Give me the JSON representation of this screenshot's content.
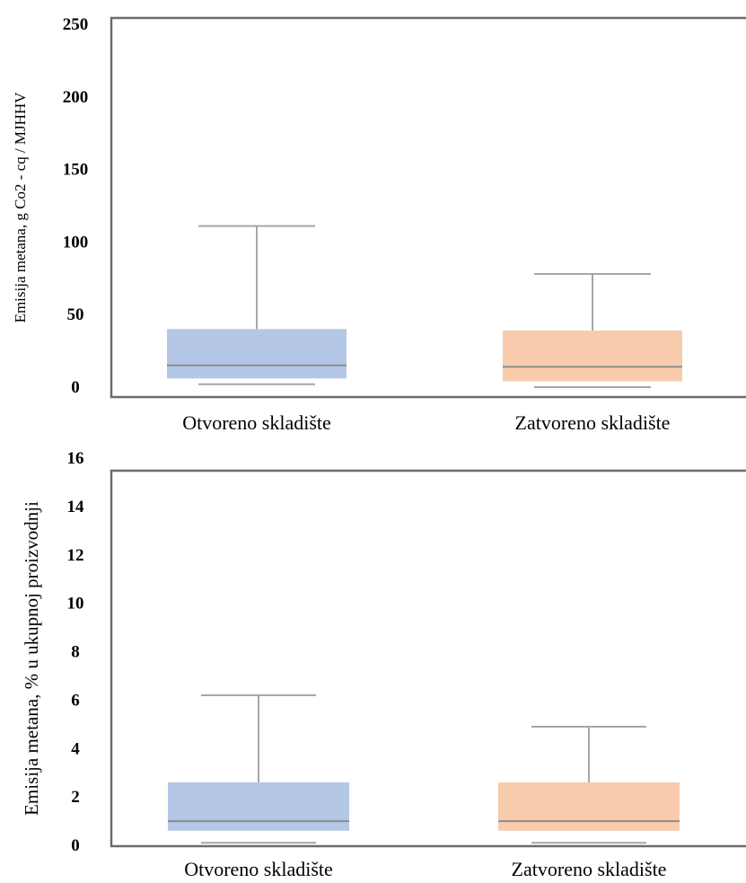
{
  "chart_data": [
    {
      "type": "boxplot",
      "ylabel": "Emisija  metana, g Co2 - cq / MJHHV",
      "ylim": [
        0,
        250
      ],
      "yticks": [
        0,
        50,
        100,
        150,
        200,
        250
      ],
      "categories": [
        "Otvoreno skladište",
        "Zatvoreno skladište"
      ],
      "boxes": [
        {
          "min": 2,
          "q1": 6,
          "median": 15,
          "q3": 40,
          "max": 111,
          "color": "#b4c7e7"
        },
        {
          "min": 0,
          "q1": 4,
          "median": 14,
          "q3": 39,
          "max": 78,
          "color": "#f8cbad"
        }
      ],
      "grid": false
    },
    {
      "type": "boxplot",
      "ylabel": "Emisija metana, % u ukupnoj proizvodnji",
      "ylim": [
        0,
        16
      ],
      "yticks": [
        0,
        2,
        4,
        6,
        8,
        10,
        12,
        14,
        16
      ],
      "categories": [
        "Otvoreno skladište",
        "Zatvoreno skladište"
      ],
      "boxes": [
        {
          "min": 0.1,
          "q1": 0.6,
          "median": 1.0,
          "q3": 2.6,
          "max": 6.2,
          "color": "#b4c7e7"
        },
        {
          "min": 0.1,
          "q1": 0.6,
          "median": 1.0,
          "q3": 2.6,
          "max": 4.9,
          "color": "#f8cbad"
        }
      ],
      "grid": false
    }
  ]
}
